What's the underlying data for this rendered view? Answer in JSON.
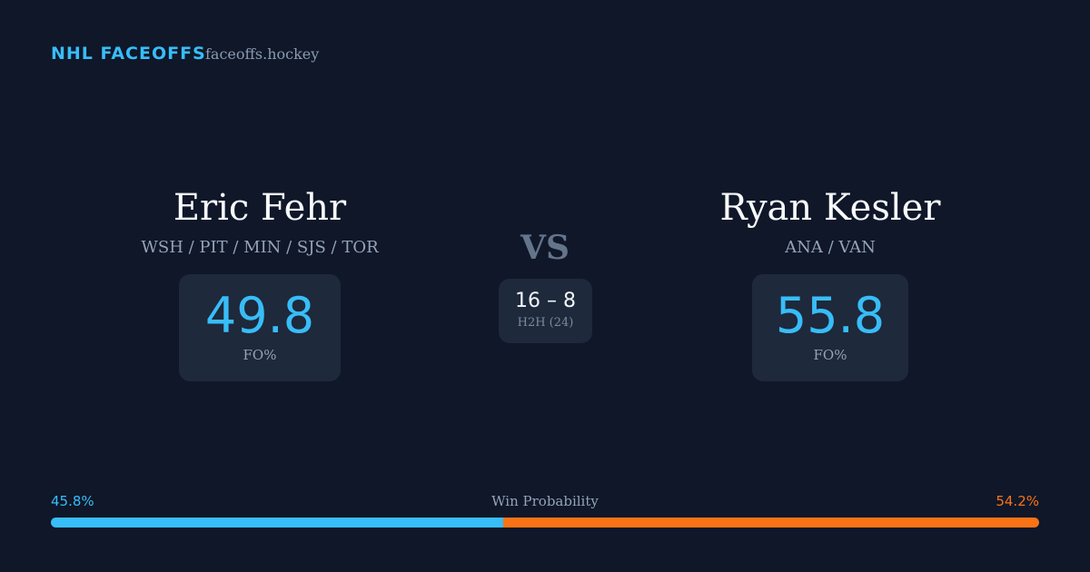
{
  "header": {
    "brand": "NHL FACEOFFS",
    "site": "faceoffs.hockey"
  },
  "players": [
    {
      "name": "Eric Fehr",
      "teams": "WSH / PIT / MIN / SJS / TOR",
      "fo_pct": "49.8",
      "fo_label": "FO%"
    },
    {
      "name": "Ryan Kesler",
      "teams": "ANA / VAN",
      "fo_pct": "55.8",
      "fo_label": "FO%"
    }
  ],
  "vs": "VS",
  "h2h": {
    "score": "16 – 8",
    "label": "H2H (24)"
  },
  "win_probability": {
    "label": "Win Probability",
    "values": [
      45.8,
      54.2
    ],
    "value_labels": [
      "45.8%",
      "54.2%"
    ],
    "colors": [
      "#38bdf8",
      "#f97316"
    ]
  }
}
